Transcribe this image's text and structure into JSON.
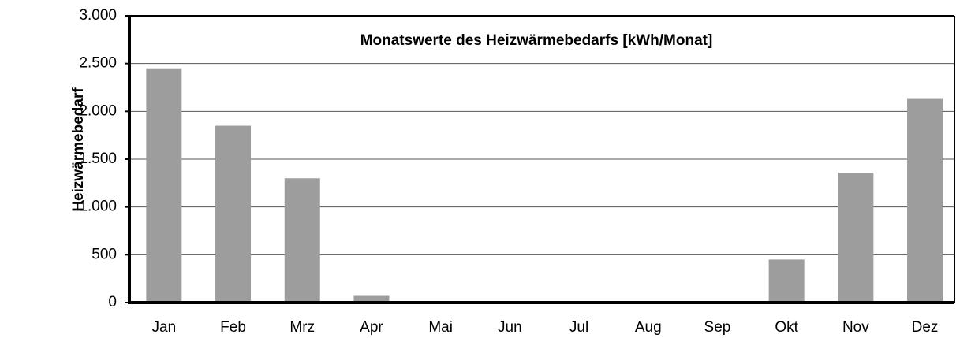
{
  "chart_data": {
    "type": "bar",
    "title": "Monatswerte des Heizwärmebedarfs [kWh/Monat]",
    "y_label": "Heizwärmebedarf",
    "categories": [
      "Jan",
      "Feb",
      "Mrz",
      "Apr",
      "Mai",
      "Jun",
      "Jul",
      "Aug",
      "Sep",
      "Okt",
      "Nov",
      "Dez"
    ],
    "values": [
      2450,
      1850,
      1300,
      70,
      0,
      0,
      0,
      0,
      0,
      450,
      1360,
      2130
    ],
    "color": "#9d9d9d",
    "ylim": [
      0,
      3000
    ],
    "yticks": [
      0,
      500,
      {
        "value": 1000,
        "label": "1.000"
      },
      {
        "value": 1500,
        "label": "1.500"
      },
      {
        "value": 2000,
        "label": "2.000"
      },
      {
        "value": 2500,
        "label": "2.500"
      },
      {
        "value": 3000,
        "label": "3.000"
      }
    ],
    "grid": true
  }
}
